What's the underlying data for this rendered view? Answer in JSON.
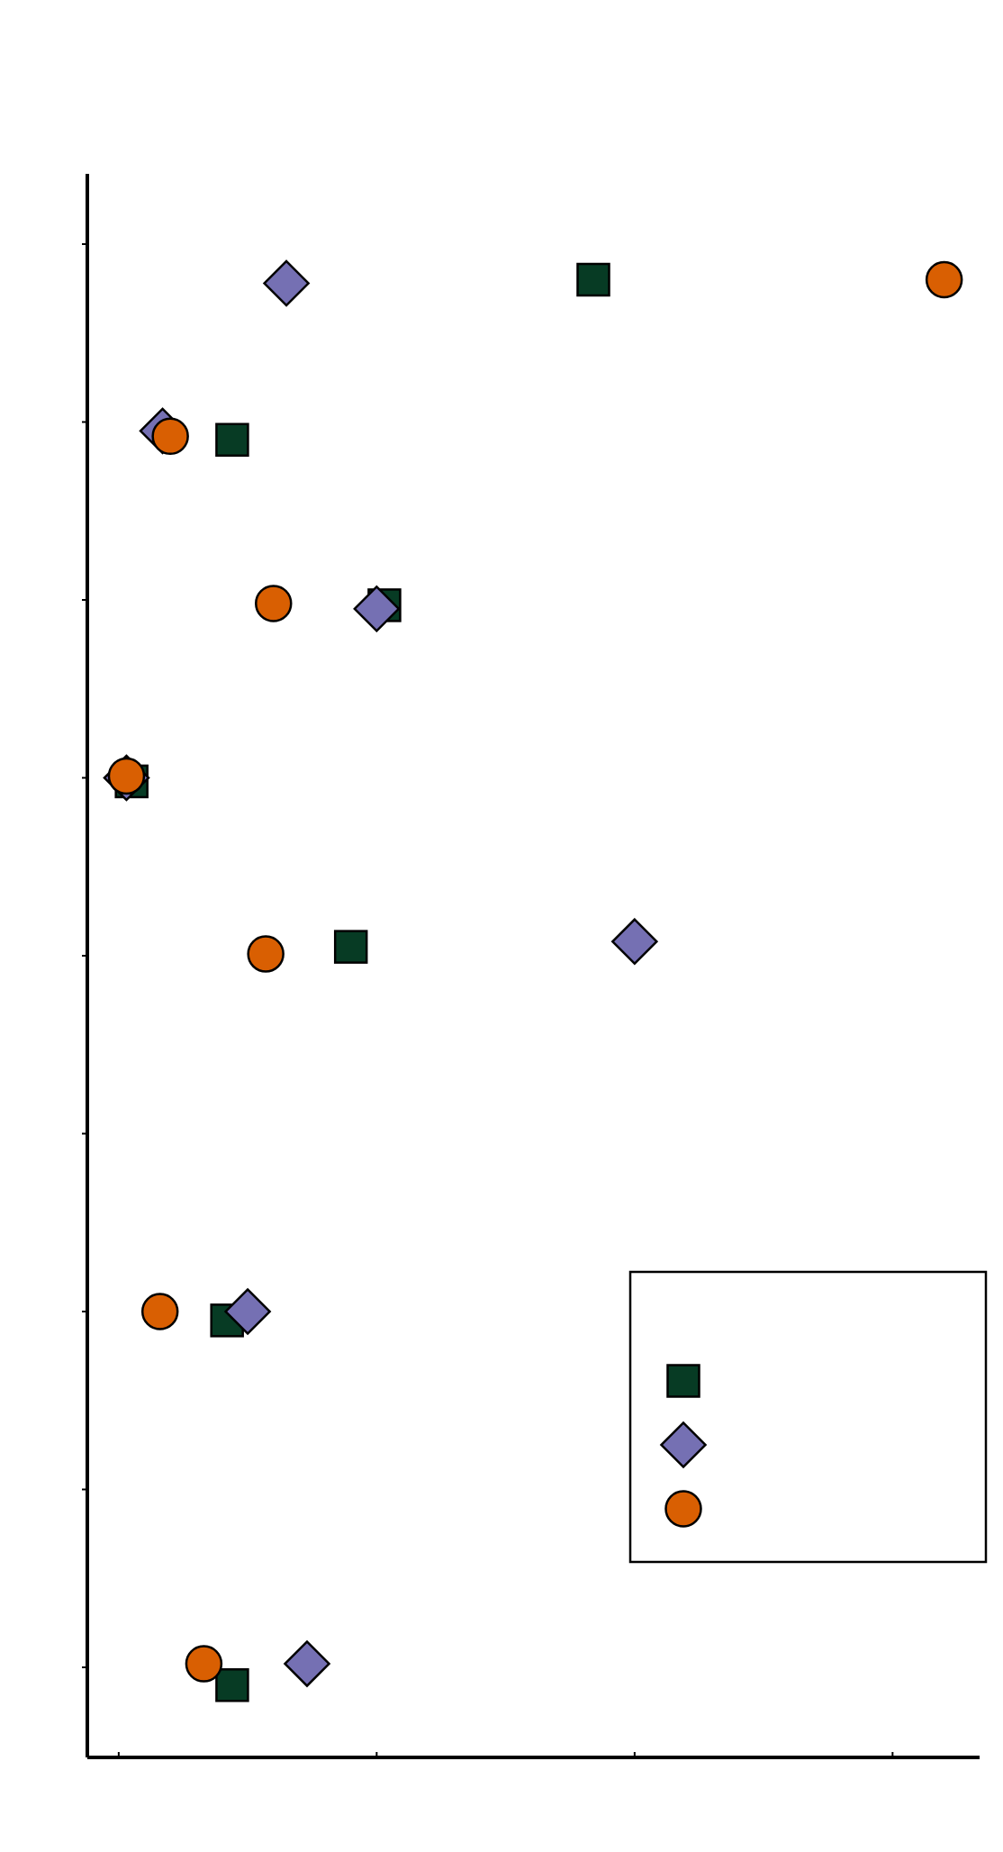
{
  "chart_data": {
    "type": "scatter",
    "title": "",
    "xlabel": "",
    "ylabel": "",
    "xlim": [
      0,
      33.5
    ],
    "ylim": [
      -0.5,
      8.4
    ],
    "x_ticks": [
      1,
      11,
      21,
      31
    ],
    "y_ticks": [
      0,
      1,
      2,
      3,
      4,
      5,
      6,
      7,
      8
    ],
    "categories": [
      "0",
      "1",
      "2",
      "3",
      "4",
      "5",
      "6",
      "7",
      "8"
    ],
    "grid": false,
    "legend_position": "lower-right",
    "series": [
      {
        "marker": "square",
        "color": "#073b24",
        "points": [
          {
            "x": 5.4,
            "y": -0.1
          },
          {
            "x": 5.2,
            "y": 1.95
          },
          {
            "x": 10.0,
            "y": 4.05
          },
          {
            "x": 1.5,
            "y": 4.98
          },
          {
            "x": 11.3,
            "y": 5.97
          },
          {
            "x": 5.4,
            "y": 6.9
          },
          {
            "x": 19.4,
            "y": 7.8
          }
        ]
      },
      {
        "marker": "diamond",
        "color": "#7570b3",
        "points": [
          {
            "x": 8.3,
            "y": 0.02
          },
          {
            "x": 6.0,
            "y": 2.0
          },
          {
            "x": 21.0,
            "y": 4.08
          },
          {
            "x": 1.3,
            "y": 5.0
          },
          {
            "x": 11.0,
            "y": 5.95
          },
          {
            "x": 2.7,
            "y": 6.95
          },
          {
            "x": 7.5,
            "y": 7.78
          }
        ]
      },
      {
        "marker": "circle",
        "color": "#d95f02",
        "points": [
          {
            "x": 4.3,
            "y": 0.02
          },
          {
            "x": 2.6,
            "y": 2.0
          },
          {
            "x": 6.7,
            "y": 4.01
          },
          {
            "x": 1.3,
            "y": 5.01
          },
          {
            "x": 7.0,
            "y": 5.98
          },
          {
            "x": 3.0,
            "y": 6.92
          },
          {
            "x": 33.0,
            "y": 7.8
          }
        ]
      }
    ]
  }
}
